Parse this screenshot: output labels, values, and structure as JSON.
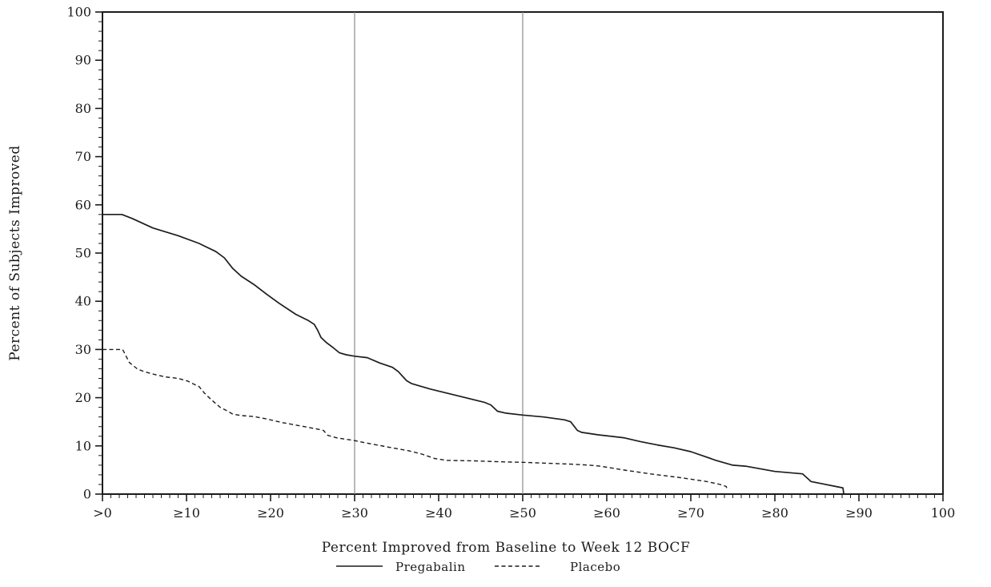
{
  "chart_data": {
    "type": "line",
    "title": "",
    "xlabel": "Percent Improved from Baseline to Week 12 BOCF",
    "ylabel": "Percent of Subjects Improved",
    "xlim": [
      0,
      100
    ],
    "ylim": [
      0,
      100
    ],
    "grid": "off",
    "x_major_ticks": [
      0,
      10,
      20,
      30,
      40,
      50,
      60,
      70,
      80,
      90,
      100
    ],
    "x_tick_labels": [
      ">0",
      "≥10",
      "≥20",
      "≥30",
      "≥40",
      "≥50",
      "≥60",
      "≥70",
      "≥80",
      "≥90",
      "100"
    ],
    "x_minor_tick_step": 1,
    "y_major_ticks": [
      0,
      10,
      20,
      30,
      40,
      50,
      60,
      70,
      80,
      90,
      100
    ],
    "y_tick_labels": [
      "0",
      "10",
      "20",
      "30",
      "40",
      "50",
      "60",
      "70",
      "80",
      "90",
      "100"
    ],
    "y_minor_tick_step": 2,
    "reference_lines_x": [
      30,
      50
    ],
    "legend_position": "bottom-center",
    "axis_color": "#1c1c1c",
    "reference_line_color": "#8a8a8a",
    "series": [
      {
        "name": "Pregabalin",
        "style": "solid",
        "color": "#1c1c1c",
        "points": [
          [
            0,
            58
          ],
          [
            2.3,
            58
          ],
          [
            3.5,
            57.2
          ],
          [
            6,
            55.2
          ],
          [
            9,
            53.6
          ],
          [
            11.5,
            52
          ],
          [
            13.5,
            50.3
          ],
          [
            14.5,
            49
          ],
          [
            15.5,
            46.8
          ],
          [
            16.5,
            45.2
          ],
          [
            18,
            43.5
          ],
          [
            19.5,
            41.5
          ],
          [
            21,
            39.6
          ],
          [
            23,
            37.3
          ],
          [
            24.5,
            36
          ],
          [
            25.2,
            35.2
          ],
          [
            25.6,
            34
          ],
          [
            26,
            32.5
          ],
          [
            26.6,
            31.5
          ],
          [
            27.5,
            30.3
          ],
          [
            28.2,
            29.3
          ],
          [
            29,
            28.9
          ],
          [
            30,
            28.6
          ],
          [
            31.5,
            28.3
          ],
          [
            33,
            27.2
          ],
          [
            34.5,
            26.3
          ],
          [
            35.2,
            25.4
          ],
          [
            36.2,
            23.5
          ],
          [
            36.8,
            22.9
          ],
          [
            39,
            21.8
          ],
          [
            42.5,
            20.3
          ],
          [
            45.5,
            19
          ],
          [
            46.2,
            18.5
          ],
          [
            47,
            17.2
          ],
          [
            48,
            16.8
          ],
          [
            50,
            16.4
          ],
          [
            52.5,
            16
          ],
          [
            55,
            15.4
          ],
          [
            55.7,
            15
          ],
          [
            56.5,
            13.2
          ],
          [
            57,
            12.8
          ],
          [
            59,
            12.3
          ],
          [
            62,
            11.7
          ],
          [
            64,
            10.9
          ],
          [
            66,
            10.2
          ],
          [
            68,
            9.6
          ],
          [
            70,
            8.8
          ],
          [
            71.5,
            7.9
          ],
          [
            73,
            7
          ],
          [
            74,
            6.5
          ],
          [
            75,
            6
          ],
          [
            76.5,
            5.8
          ],
          [
            80,
            4.7
          ],
          [
            83.3,
            4.2
          ],
          [
            83.8,
            3.4
          ],
          [
            84.3,
            2.6
          ],
          [
            85.5,
            2.2
          ],
          [
            87.5,
            1.5
          ],
          [
            88.1,
            1.3
          ],
          [
            88.2,
            0
          ]
        ]
      },
      {
        "name": "Placebo",
        "style": "dashed",
        "color": "#1c1c1c",
        "points": [
          [
            0,
            30
          ],
          [
            2.4,
            30
          ],
          [
            3.2,
            27.3
          ],
          [
            4.2,
            25.9
          ],
          [
            5,
            25.4
          ],
          [
            6,
            24.9
          ],
          [
            7.5,
            24.3
          ],
          [
            9,
            24
          ],
          [
            10.2,
            23.4
          ],
          [
            11.1,
            22.6
          ],
          [
            11.5,
            22.3
          ],
          [
            12.1,
            21
          ],
          [
            13,
            19.5
          ],
          [
            14,
            18
          ],
          [
            14.8,
            17.3
          ],
          [
            15.5,
            16.6
          ],
          [
            16.5,
            16.3
          ],
          [
            18,
            16.1
          ],
          [
            19.5,
            15.6
          ],
          [
            21.5,
            14.8
          ],
          [
            24,
            14
          ],
          [
            25.5,
            13.5
          ],
          [
            26.3,
            13.2
          ],
          [
            26.8,
            12.2
          ],
          [
            27.8,
            11.7
          ],
          [
            30,
            11.1
          ],
          [
            32,
            10.4
          ],
          [
            34.8,
            9.5
          ],
          [
            36.4,
            9
          ],
          [
            38,
            8.3
          ],
          [
            39.5,
            7.4
          ],
          [
            41,
            7
          ],
          [
            44.3,
            6.9
          ],
          [
            47.5,
            6.7
          ],
          [
            50,
            6.6
          ],
          [
            53,
            6.4
          ],
          [
            56,
            6.2
          ],
          [
            58,
            6
          ],
          [
            59.2,
            5.8
          ],
          [
            62.4,
            4.9
          ],
          [
            65.6,
            4.1
          ],
          [
            68.8,
            3.4
          ],
          [
            71.9,
            2.6
          ],
          [
            73.5,
            2
          ],
          [
            74.2,
            1.6
          ],
          [
            74.4,
            0.8
          ]
        ]
      }
    ]
  }
}
